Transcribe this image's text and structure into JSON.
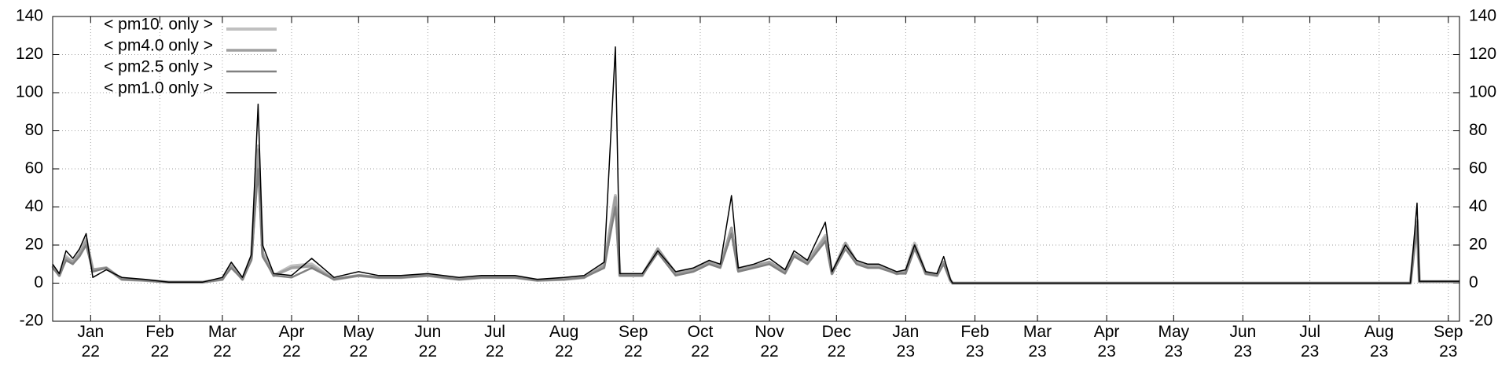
{
  "chart_data": {
    "type": "line",
    "x": [
      "2021-12-15",
      "2021-12-18",
      "2021-12-21",
      "2021-12-24",
      "2021-12-27",
      "2021-12-30",
      "2022-01-02",
      "2022-01-08",
      "2022-01-15",
      "2022-01-25",
      "2022-02-05",
      "2022-02-20",
      "2022-03-01",
      "2022-03-05",
      "2022-03-10",
      "2022-03-14",
      "2022-03-17",
      "2022-03-19",
      "2022-03-24",
      "2022-04-01",
      "2022-04-10",
      "2022-04-20",
      "2022-05-01",
      "2022-05-10",
      "2022-05-20",
      "2022-06-01",
      "2022-06-15",
      "2022-06-25",
      "2022-07-01",
      "2022-07-10",
      "2022-07-20",
      "2022-08-01",
      "2022-08-10",
      "2022-08-19",
      "2022-08-24",
      "2022-08-26",
      "2022-09-05",
      "2022-09-12",
      "2022-09-20",
      "2022-09-28",
      "2022-10-05",
      "2022-10-10",
      "2022-10-15",
      "2022-10-18",
      "2022-10-25",
      "2022-11-01",
      "2022-11-08",
      "2022-11-12",
      "2022-11-18",
      "2022-11-26",
      "2022-11-29",
      "2022-12-05",
      "2022-12-10",
      "2022-12-15",
      "2022-12-20",
      "2022-12-28",
      "2023-01-01",
      "2023-01-05",
      "2023-01-10",
      "2023-01-15",
      "2023-01-18",
      "2023-01-21",
      "2023-01-22",
      "2023-03-01",
      "2023-05-01",
      "2023-08-15",
      "2023-08-18",
      "2023-08-19",
      "2023-08-25",
      "2023-09-06"
    ],
    "series": [
      {
        "name": "< pm10. only >",
        "color": "#c0c0c0",
        "values": [
          9,
          4,
          14,
          11,
          16,
          23,
          7,
          8,
          2,
          1.5,
          0.5,
          0.5,
          2,
          10,
          2,
          14,
          72,
          16,
          4,
          9,
          10,
          2,
          4,
          3,
          3,
          4,
          2,
          3,
          3,
          3,
          1.5,
          2,
          3,
          10,
          46,
          4,
          4,
          18,
          5,
          7,
          11,
          9,
          28,
          7,
          9,
          11,
          6,
          15,
          11,
          25,
          5,
          21,
          11,
          9,
          9,
          5,
          6,
          21,
          5,
          4,
          11,
          1.5,
          0,
          0,
          0,
          0,
          33,
          0.8,
          0.8,
          0.8
        ]
      },
      {
        "name": "< pm4.0 only >",
        "color": "#a0a0a0",
        "values": [
          9,
          4,
          13,
          11,
          15,
          22,
          7,
          8,
          2,
          1.5,
          0.5,
          0.5,
          2,
          9,
          2,
          13,
          70,
          15,
          4,
          8,
          9,
          2,
          4,
          3,
          3,
          4,
          2,
          3,
          3,
          3,
          1.5,
          2,
          3,
          9,
          45,
          4,
          4,
          18,
          5,
          7,
          11,
          9,
          29,
          7,
          9,
          11,
          6,
          15,
          11,
          24,
          5,
          21,
          11,
          9,
          9,
          5,
          6,
          20,
          5,
          4,
          11,
          1.5,
          0,
          0,
          0,
          0,
          32,
          0.8,
          0.8,
          0.8
        ]
      },
      {
        "name": "< pm2.5 only >",
        "color": "#808080",
        "values": [
          8,
          4,
          12,
          10,
          14,
          20,
          6,
          8,
          2,
          1.5,
          0.5,
          0.5,
          2,
          8,
          2,
          12,
          60,
          14,
          4,
          3,
          8,
          2,
          4,
          3,
          3,
          4,
          2,
          3,
          3,
          3,
          1.5,
          2,
          3,
          8,
          40,
          4,
          4,
          16,
          4,
          6,
          10,
          8,
          26,
          6,
          8,
          10,
          5,
          14,
          10,
          22,
          5,
          18,
          10,
          8,
          8,
          5,
          5,
          18,
          5,
          4,
          10,
          1.5,
          0,
          0,
          0,
          0,
          30,
          0.8,
          0.8,
          0.8
        ]
      },
      {
        "name": "< pm1.0 only >",
        "color": "#000000",
        "values": [
          10,
          5,
          17,
          13,
          18,
          26,
          3,
          7,
          3,
          2,
          0.5,
          0.5,
          3,
          11,
          3,
          15,
          94,
          20,
          5,
          4,
          13,
          3,
          6,
          4,
          4,
          5,
          3,
          4,
          4,
          4,
          2,
          3,
          4,
          11,
          124,
          5,
          5,
          17,
          6,
          8,
          12,
          10,
          46,
          8,
          10,
          13,
          7,
          17,
          12,
          32,
          6,
          20,
          12,
          10,
          10,
          6,
          7,
          20,
          6,
          5,
          14,
          2,
          0,
          0,
          0,
          0,
          42,
          1,
          1,
          1
        ]
      }
    ],
    "xlim": [
      "2021-12-15",
      "2023-09-06"
    ],
    "xticks": [
      {
        "value": "2022-01-01",
        "label": "Jan\n22"
      },
      {
        "value": "2022-02-01",
        "label": "Feb\n22"
      },
      {
        "value": "2022-03-01",
        "label": "Mar\n22"
      },
      {
        "value": "2022-04-01",
        "label": "Apr\n22"
      },
      {
        "value": "2022-05-01",
        "label": "May\n22"
      },
      {
        "value": "2022-06-01",
        "label": "Jun\n22"
      },
      {
        "value": "2022-07-01",
        "label": "Jul\n22"
      },
      {
        "value": "2022-08-01",
        "label": "Aug\n22"
      },
      {
        "value": "2022-09-01",
        "label": "Sep\n22"
      },
      {
        "value": "2022-10-01",
        "label": "Oct\n22"
      },
      {
        "value": "2022-11-01",
        "label": "Nov\n22"
      },
      {
        "value": "2022-12-01",
        "label": "Dec\n22"
      },
      {
        "value": "2023-01-01",
        "label": "Jan\n23"
      },
      {
        "value": "2023-02-01",
        "label": "Feb\n23"
      },
      {
        "value": "2023-03-01",
        "label": "Mar\n23"
      },
      {
        "value": "2023-04-01",
        "label": "Apr\n23"
      },
      {
        "value": "2023-05-01",
        "label": "May\n23"
      },
      {
        "value": "2023-06-01",
        "label": "Jun\n23"
      },
      {
        "value": "2023-07-01",
        "label": "Jul\n23"
      },
      {
        "value": "2023-08-01",
        "label": "Aug\n23"
      },
      {
        "value": "2023-09-01",
        "label": "Sep\n23"
      }
    ],
    "ylim": [
      -20,
      140
    ],
    "yticks": [
      -20,
      0,
      20,
      40,
      60,
      80,
      100,
      120,
      140
    ],
    "grid": true,
    "legend": "upper-left"
  }
}
